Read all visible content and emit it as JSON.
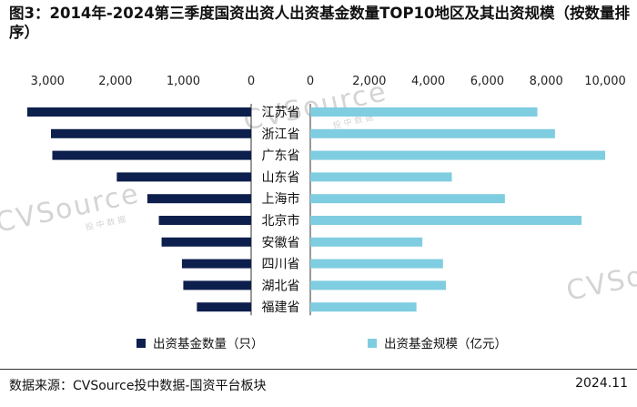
{
  "title": "图3：2014年-2024第三季度国资出资人出资基金数量TOP10地区及其出资规模（按数量排序）",
  "watermark": {
    "brand": "CVSource",
    "sub": "投中数据"
  },
  "footer": {
    "source": "数据来源：CVSource投中数据-国资平台板块",
    "date": "2024.11"
  },
  "colors": {
    "count": "#0d1f4d",
    "scale": "#7fcde0",
    "axis": "#333333",
    "watermark": "#d4d4d4"
  },
  "chart_data": {
    "type": "bar",
    "layout": "butterfly",
    "categories": [
      "江苏省",
      "浙江省",
      "广东省",
      "山东省",
      "上海市",
      "北京市",
      "安徽省",
      "四川省",
      "湖北省",
      "福建省"
    ],
    "series": [
      {
        "name": "出资基金数量（只）",
        "side": "left",
        "values": [
          3300,
          2950,
          2930,
          1980,
          1530,
          1360,
          1320,
          1020,
          1000,
          800
        ],
        "xlim": [
          0,
          3500
        ],
        "ticks": [
          3000,
          2000,
          1000,
          0
        ],
        "tick_labels": [
          "3,000",
          "2,000",
          "1,000",
          "0"
        ]
      },
      {
        "name": "出资基金规模（亿元）",
        "side": "right",
        "values": [
          7700,
          8300,
          10000,
          4800,
          6600,
          9200,
          3800,
          4500,
          4600,
          3600
        ],
        "xlim": [
          0,
          10000
        ],
        "ticks": [
          0,
          2000,
          4000,
          6000,
          8000,
          10000
        ],
        "tick_labels": [
          "0",
          "2,000",
          "4,000",
          "6,000",
          "8,000",
          "10,000"
        ]
      }
    ],
    "legend": [
      "出资基金数量（只）",
      "出资基金规模（亿元）"
    ],
    "legend_position": "bottom"
  }
}
